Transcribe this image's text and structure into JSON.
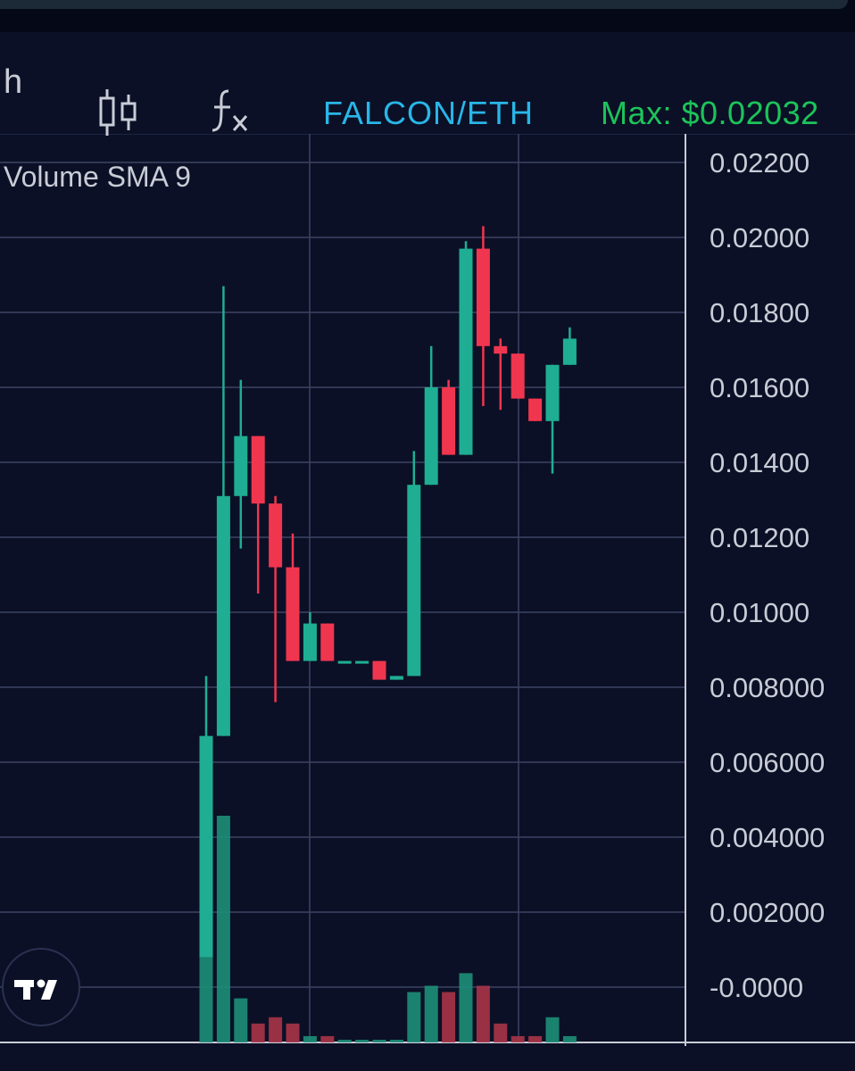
{
  "toolbar": {
    "interval_fragment": "h",
    "candle_icon": "candlestick-icon",
    "fx_icon": "indicators-fx-icon",
    "symbol": "FALCON/ETH",
    "max_label": "Max: $0.02032"
  },
  "study_label": "Volume SMA 9",
  "logo_icon": "tradingview-logo-icon",
  "colors": {
    "background": "#0b1026",
    "up": "#1fae93",
    "down": "#f0364f",
    "up_volume": "#1d8f79",
    "down_volume": "#a83447",
    "grid": "#3a4160",
    "axis_text": "#c9ccd6",
    "symbol": "#29b6e8",
    "max": "#1cc45a"
  },
  "chart_data": {
    "type": "candlestick",
    "title": "FALCON/ETH",
    "ylim": [
      -0.0002,
      0.0222
    ],
    "y_ticks": [
      "0.02200",
      "0.02000",
      "0.01800",
      "0.01600",
      "0.01400",
      "0.01200",
      "0.01000",
      "0.008000",
      "0.006000",
      "0.004000",
      "0.002000",
      "-0.0000"
    ],
    "y_tick_values": [
      0.022,
      0.02,
      0.018,
      0.016,
      0.014,
      0.012,
      0.01,
      0.008,
      0.006,
      0.004,
      0.002,
      0.0
    ],
    "candles": [
      {
        "o": 0.0008,
        "h": 0.0083,
        "l": 0.0008,
        "c": 0.0067,
        "vol": 0.002
      },
      {
        "o": 0.0067,
        "h": 0.0187,
        "l": 0.0067,
        "c": 0.0131,
        "vol": 0.0036
      },
      {
        "o": 0.0131,
        "h": 0.0162,
        "l": 0.0117,
        "c": 0.0147,
        "vol": 0.0007
      },
      {
        "o": 0.0147,
        "h": 0.0147,
        "l": 0.0105,
        "c": 0.0129,
        "vol": 0.0003
      },
      {
        "o": 0.0129,
        "h": 0.0131,
        "l": 0.0076,
        "c": 0.0112,
        "vol": 0.0004
      },
      {
        "o": 0.0112,
        "h": 0.0121,
        "l": 0.0087,
        "c": 0.0087,
        "vol": 0.0003
      },
      {
        "o": 0.0087,
        "h": 0.01,
        "l": 0.0087,
        "c": 0.0097,
        "vol": 0.0001
      },
      {
        "o": 0.0097,
        "h": 0.0097,
        "l": 0.0087,
        "c": 0.0087,
        "vol": 0.0001
      },
      {
        "o": 0.0087,
        "h": 0.0087,
        "l": 0.0087,
        "c": 0.0087,
        "vol": 0.0
      },
      {
        "o": 0.0087,
        "h": 0.0087,
        "l": 0.0087,
        "c": 0.0087,
        "vol": 0.0
      },
      {
        "o": 0.0087,
        "h": 0.0087,
        "l": 0.0082,
        "c": 0.0082,
        "vol": 0.0
      },
      {
        "o": 0.0082,
        "h": 0.0083,
        "l": 0.0082,
        "c": 0.0083,
        "vol": 0.0
      },
      {
        "o": 0.0083,
        "h": 0.0143,
        "l": 0.0083,
        "c": 0.0134,
        "vol": 0.0008
      },
      {
        "o": 0.0134,
        "h": 0.0171,
        "l": 0.0134,
        "c": 0.016,
        "vol": 0.0009
      },
      {
        "o": 0.016,
        "h": 0.0162,
        "l": 0.0142,
        "c": 0.0142,
        "vol": 0.0008
      },
      {
        "o": 0.0142,
        "h": 0.0199,
        "l": 0.0142,
        "c": 0.0197,
        "vol": 0.0011
      },
      {
        "o": 0.0197,
        "h": 0.0203,
        "l": 0.0155,
        "c": 0.0171,
        "vol": 0.0009
      },
      {
        "o": 0.0171,
        "h": 0.0173,
        "l": 0.0154,
        "c": 0.0169,
        "vol": 0.0003
      },
      {
        "o": 0.0169,
        "h": 0.0169,
        "l": 0.0157,
        "c": 0.0157,
        "vol": 0.0001
      },
      {
        "o": 0.0157,
        "h": 0.0157,
        "l": 0.0151,
        "c": 0.0151,
        "vol": 0.0001
      },
      {
        "o": 0.0151,
        "h": 0.0166,
        "l": 0.0137,
        "c": 0.0166,
        "vol": 0.0004
      },
      {
        "o": 0.0166,
        "h": 0.0176,
        "l": 0.0166,
        "c": 0.0173,
        "vol": 0.0001
      }
    ],
    "grid": true
  }
}
